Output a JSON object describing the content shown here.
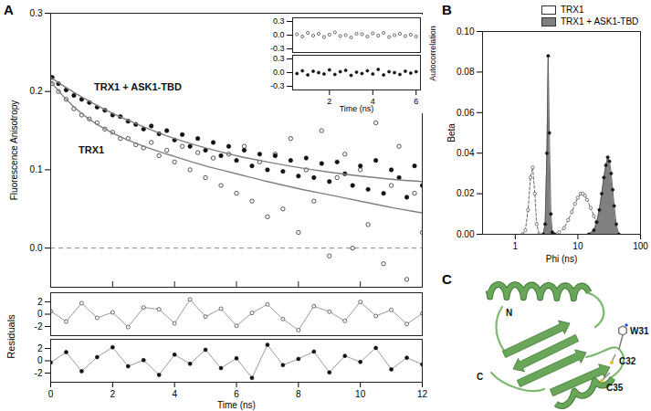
{
  "chart_data": [
    {
      "type": "scatter",
      "panel_label": "A",
      "y_label": "Fluorescence Anisotropy",
      "xlim": [
        0,
        12
      ],
      "xticks": [
        0,
        2,
        4,
        6,
        8,
        10,
        12
      ],
      "ylim": [
        -0.05,
        0.3
      ],
      "yticks": [
        {
          "value": 0,
          "label": "0.0"
        },
        0.1,
        0.2,
        0.3
      ],
      "tick_labels": "y",
      "baseline": 0,
      "series": [
        {
          "name": "TRX1",
          "marker": "open circle",
          "x": [
            0.05,
            0.25,
            0.5,
            0.75,
            1,
            1.25,
            1.5,
            1.75,
            2,
            2.25,
            2.5,
            2.75,
            3,
            3.25,
            3.5,
            3.75,
            4,
            4.25,
            4.5,
            4.75,
            5,
            5.25,
            5.5,
            5.75,
            6,
            6.25,
            6.5,
            6.75,
            7,
            7.25,
            7.5,
            7.75,
            8,
            8.25,
            8.5,
            8.75,
            9,
            9.25,
            9.5,
            9.75,
            10,
            10.25,
            10.5,
            10.75,
            11,
            11.25,
            11.5,
            11.75,
            12
          ],
          "values": [
            0.21,
            0.2,
            0.19,
            0.178,
            0.17,
            0.165,
            0.16,
            0.152,
            0.148,
            0.14,
            0.14,
            0.132,
            0.128,
            0.135,
            0.118,
            0.125,
            0.11,
            0.13,
            0.1,
            0.122,
            0.09,
            0.115,
            0.08,
            0.12,
            0.07,
            0.13,
            0.06,
            0.11,
            0.04,
            0.12,
            0.05,
            0.14,
            0.02,
            0.1,
            0.06,
            0.15,
            -0.01,
            0.09,
            0.12,
            0.0,
            0.1,
            0.03,
            0.16,
            -0.02,
            0.08,
            0.13,
            -0.04,
            0.07,
            0.02
          ],
          "fit": {
            "color": "#808080",
            "x": [
              0,
              0.5,
              1,
              1.5,
              2,
              3,
              4,
              5,
              6,
              7,
              8,
              9,
              10,
              11,
              12
            ],
            "values": [
              0.213,
              0.19,
              0.172,
              0.158,
              0.147,
              0.13,
              0.117,
              0.105,
              0.095,
              0.085,
              0.076,
              0.068,
              0.06,
              0.052,
              0.045
            ]
          },
          "label_x": 0.9,
          "label_y": 0.125
        },
        {
          "name": "TRX1 + ASK1-TBD",
          "marker": "filled circle",
          "x": [
            0.05,
            0.25,
            0.5,
            0.75,
            1,
            1.25,
            1.5,
            1.75,
            2,
            2.25,
            2.5,
            2.75,
            3,
            3.25,
            3.5,
            3.75,
            4,
            4.25,
            4.5,
            4.75,
            5,
            5.25,
            5.5,
            5.75,
            6,
            6.25,
            6.5,
            6.75,
            7,
            7.25,
            7.5,
            7.75,
            8,
            8.25,
            8.5,
            8.75,
            9,
            9.25,
            9.5,
            9.75,
            10,
            10.25,
            10.5,
            10.75,
            11,
            11.25,
            11.5,
            11.75,
            12
          ],
          "values": [
            0.218,
            0.21,
            0.202,
            0.195,
            0.19,
            0.186,
            0.18,
            0.176,
            0.17,
            0.168,
            0.162,
            0.158,
            0.152,
            0.156,
            0.146,
            0.15,
            0.138,
            0.145,
            0.13,
            0.14,
            0.125,
            0.135,
            0.118,
            0.13,
            0.112,
            0.125,
            0.105,
            0.12,
            0.1,
            0.118,
            0.098,
            0.112,
            0.092,
            0.115,
            0.09,
            0.108,
            0.085,
            0.11,
            0.095,
            0.08,
            0.105,
            0.075,
            0.112,
            0.07,
            0.1,
            0.09,
            0.065,
            0.105,
            0.08
          ],
          "fit": {
            "color": "#808080",
            "x": [
              0,
              0.5,
              1,
              2,
              3,
              4,
              5,
              6,
              7,
              8,
              9,
              10,
              11,
              12
            ],
            "values": [
              0.218,
              0.205,
              0.193,
              0.172,
              0.155,
              0.14,
              0.128,
              0.118,
              0.11,
              0.103,
              0.097,
              0.092,
              0.088,
              0.085
            ]
          },
          "label_x": 1.4,
          "label_y": 0.205
        }
      ]
    },
    {
      "type": "scatter",
      "y_label": "Residuals",
      "x_label": "Time (ns)",
      "xlim": [
        0,
        12
      ],
      "xticks": [
        0,
        2,
        4,
        6,
        8,
        10,
        12
      ],
      "ylim": [
        -3.5,
        3.5
      ],
      "yticks": [
        -2,
        0,
        2
      ],
      "series": [
        {
          "marker": "open circle",
          "line_style": "solid",
          "x": [
            0,
            0.5,
            1,
            1.5,
            2,
            2.5,
            3,
            3.5,
            4,
            4.5,
            5,
            5.5,
            6,
            6.5,
            7,
            7.5,
            8,
            8.5,
            9,
            9.5,
            10,
            10.5,
            11,
            11.5,
            12
          ],
          "values": [
            0.5,
            -1.2,
            1.8,
            -0.6,
            0.3,
            -2.1,
            1.1,
            0.8,
            -1.5,
            2.4,
            -0.4,
            0.9,
            -1.9,
            0.2,
            1.6,
            -0.8,
            -2.6,
            1.3,
            0.4,
            -1.1,
            2.0,
            -0.3,
            0.7,
            -1.6,
            0.1
          ]
        },
        {
          "marker": "filled circle",
          "line_style": "solid",
          "x": [
            0,
            0.5,
            1,
            1.5,
            2,
            2.5,
            3,
            3.5,
            4,
            4.5,
            5,
            5.5,
            6,
            6.5,
            7,
            7.5,
            8,
            8.5,
            9,
            9.5,
            10,
            10.5,
            11,
            11.5,
            12
          ],
          "values": [
            -0.3,
            1.4,
            -1.7,
            0.6,
            2.2,
            -0.9,
            0.1,
            -2.3,
            1.0,
            -0.5,
            1.8,
            -1.2,
            0.4,
            -2.8,
            2.6,
            -0.7,
            0.3,
            1.5,
            -1.9,
            0.8,
            -0.2,
            2.1,
            -1.4,
            0.5,
            -0.6
          ]
        }
      ]
    },
    {
      "type": "scatter",
      "y_label": "Autocorrelation",
      "x_label": "Time (ns)",
      "xlim": [
        0.3,
        6.2
      ],
      "xticks": [
        2,
        4,
        6
      ],
      "ylim": [
        -0.38,
        0.38
      ],
      "yticks": [
        -0.3,
        {
          "value": 0,
          "label": "0.0"
        },
        0.3
      ],
      "series": [
        {
          "marker": "open circle",
          "x": [
            0.5,
            0.75,
            1,
            1.25,
            1.5,
            1.75,
            2,
            2.25,
            2.5,
            2.75,
            3,
            3.25,
            3.5,
            3.75,
            4,
            4.25,
            4.5,
            4.75,
            5,
            5.25,
            5.5,
            5.75,
            6
          ],
          "values": [
            0.02,
            -0.03,
            0.05,
            -0.01,
            0.03,
            -0.04,
            0.01,
            0.06,
            -0.02,
            0.0,
            -0.05,
            0.03,
            0.02,
            -0.03,
            0.04,
            -0.01,
            0.05,
            -0.04,
            0.0,
            0.03,
            -0.02,
            0.01,
            -0.03
          ]
        },
        {
          "marker": "filled circle",
          "x": [
            0.5,
            0.75,
            1,
            1.25,
            1.5,
            1.75,
            2,
            2.25,
            2.5,
            2.75,
            3,
            3.25,
            3.5,
            3.75,
            4,
            4.25,
            4.5,
            4.75,
            5,
            5.25,
            5.5,
            5.75,
            6
          ],
          "values": [
            -0.02,
            0.04,
            -0.05,
            0.03,
            0.0,
            -0.03,
            0.06,
            -0.04,
            0.02,
            0.05,
            -0.06,
            0.01,
            -0.02,
            0.04,
            -0.03,
            0.07,
            -0.05,
            0.02,
            0.0,
            -0.04,
            0.03,
            -0.01,
            0.02
          ]
        }
      ]
    },
    {
      "type": "area",
      "panel_label": "B",
      "x_label": "Phi (ns)",
      "y_label": "Beta",
      "log": "x",
      "xlim": [
        0.3,
        100
      ],
      "xticks": [
        1,
        10,
        100
      ],
      "ylim": [
        0,
        0.1
      ],
      "yticks": [
        {
          "value": 0,
          "label": "0.00"
        },
        0.02,
        0.04,
        0.06,
        0.08,
        {
          "value": 0.1,
          "label": "0.10"
        }
      ],
      "legend": "top-right",
      "series": [
        {
          "name": "TRX1",
          "color": "#ffffff",
          "marker": "open circle",
          "line_style": "dashed",
          "x": [
            1.3,
            1.45,
            1.6,
            1.75,
            1.9,
            2.05,
            2.2,
            2.4,
            3,
            4,
            5,
            6,
            7,
            8,
            9,
            10,
            11,
            12,
            13,
            14,
            16,
            18,
            20,
            23,
            26,
            30
          ],
          "values": [
            0,
            0.002,
            0.012,
            0.028,
            0.033,
            0.02,
            0.005,
            0,
            0,
            0,
            0.001,
            0.003,
            0.007,
            0.011,
            0.015,
            0.018,
            0.02,
            0.02,
            0.019,
            0.017,
            0.013,
            0.009,
            0.006,
            0.003,
            0.001,
            0
          ]
        },
        {
          "name": "TRX1 + ASK1-TBD",
          "color": "#808080",
          "marker": "filled circle",
          "line_style": "solid",
          "x": [
            2.8,
            3.0,
            3.2,
            3.35,
            3.5,
            3.7,
            3.9,
            4.2,
            15,
            18,
            20,
            22,
            24,
            26,
            28,
            30,
            32,
            34,
            36,
            38,
            41,
            45
          ],
          "values": [
            0,
            0.005,
            0.04,
            0.088,
            0.05,
            0.01,
            0.001,
            0,
            0,
            0.002,
            0.006,
            0.012,
            0.02,
            0.028,
            0.034,
            0.038,
            0.036,
            0.03,
            0.022,
            0.014,
            0.005,
            0
          ]
        }
      ]
    }
  ],
  "structure": {
    "panel_label": "C",
    "color": "#6aa65a",
    "labels": {
      "n_terminus": "N",
      "c_terminus": "C",
      "residues": [
        "W31",
        "C32",
        "C35"
      ]
    }
  }
}
